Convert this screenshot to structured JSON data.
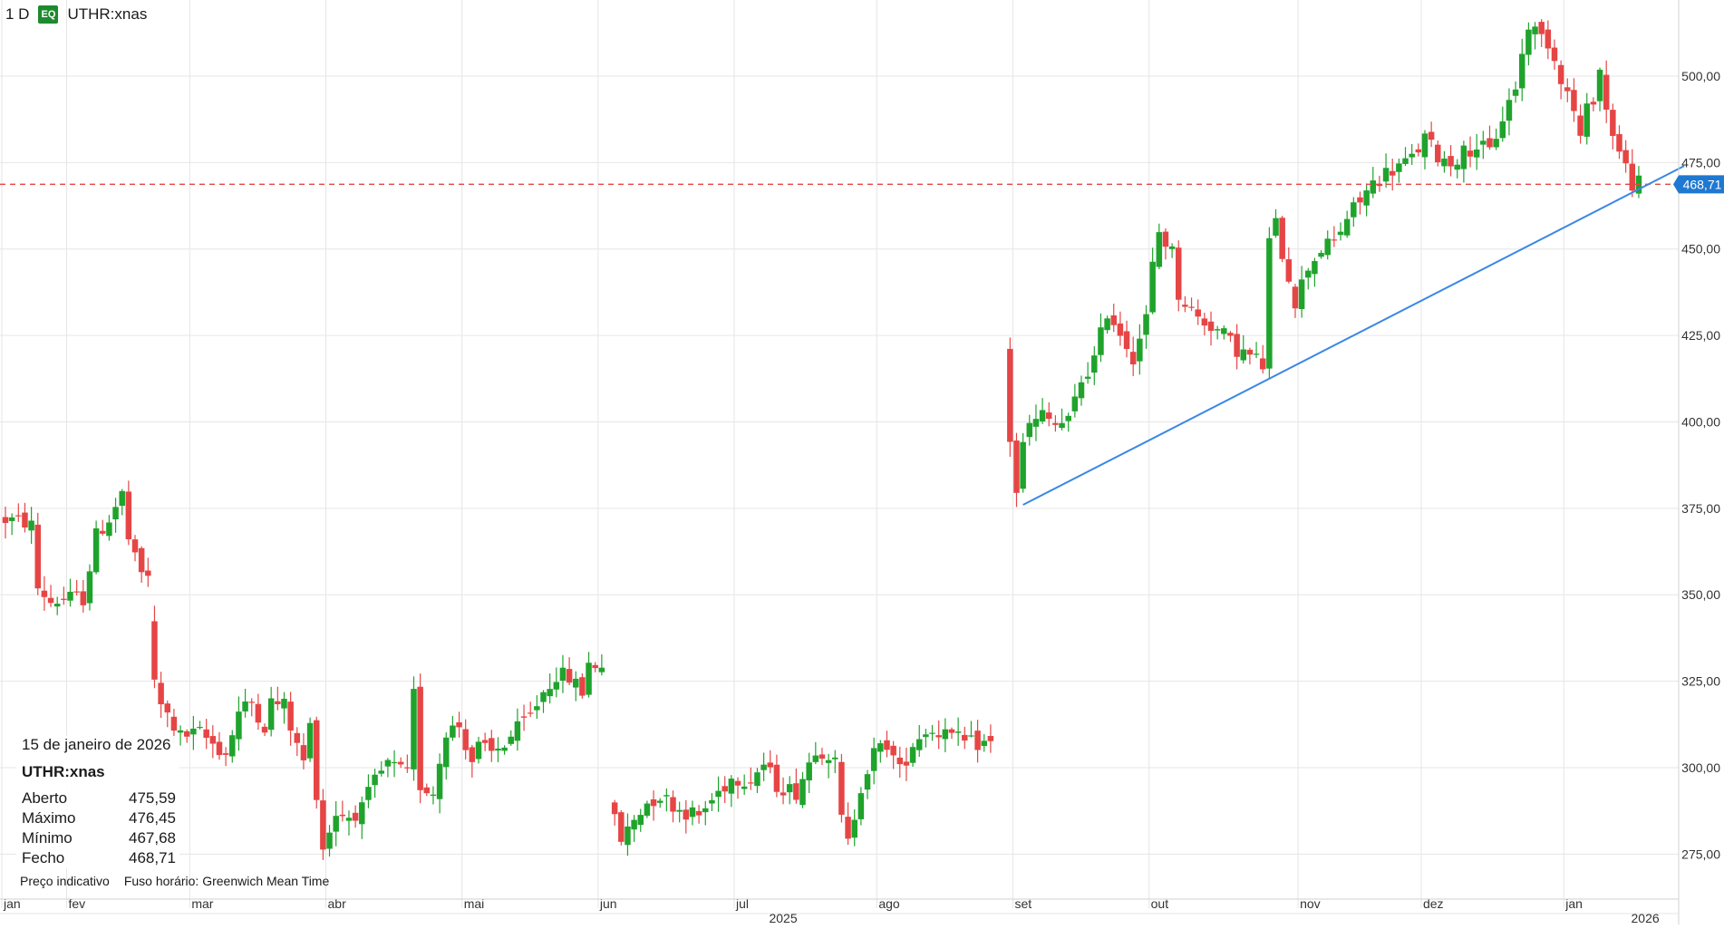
{
  "header": {
    "interval": "1 D",
    "badge": "EQ",
    "symbol": "UTHR:xnas"
  },
  "info": {
    "date": "15 de janeiro de 2026",
    "symbol": "UTHR:xnas",
    "rows": [
      {
        "label": "Aberto",
        "value": "475,59"
      },
      {
        "label": "Máximo",
        "value": "476,45"
      },
      {
        "label": "Mínimo",
        "value": "467,68"
      },
      {
        "label": "Fecho",
        "value": "468,71"
      }
    ],
    "note_price": "Preço indicativo",
    "note_tz": "Fuso horário: Greenwich Mean Time"
  },
  "colors": {
    "up": "#1fa32c",
    "down": "#e64545",
    "trendline": "#3a87e6",
    "last_price_line": "#e64545",
    "last_price_badge": "#1f78d1",
    "grid": "#e6e6e6"
  },
  "chart_data": {
    "type": "candlestick",
    "y_axis": {
      "ticks": [
        275,
        300,
        325,
        350,
        375,
        400,
        425,
        450,
        475,
        500
      ],
      "tick_labels": [
        "275,00",
        "300,00",
        "325,00",
        "350,00",
        "375,00",
        "400,00",
        "425,00",
        "450,00",
        "475,00",
        "500,00"
      ],
      "range": [
        262,
        522
      ],
      "position": "right"
    },
    "x_axis": {
      "months": [
        {
          "label": "jan",
          "day": 0
        },
        {
          "label": "fev",
          "day": 10
        },
        {
          "label": "mar",
          "day": 29
        },
        {
          "label": "abr",
          "day": 50
        },
        {
          "label": "mai",
          "day": 71
        },
        {
          "label": "jun",
          "day": 92
        },
        {
          "label": "jul",
          "day": 113
        },
        {
          "label": "ago",
          "day": 135
        },
        {
          "label": "set",
          "day": 156
        },
        {
          "label": "out",
          "day": 177
        },
        {
          "label": "nov",
          "day": 200
        },
        {
          "label": "dez",
          "day": 219
        },
        {
          "label": "jan",
          "day": 241
        }
      ],
      "years": [
        {
          "label": "2025",
          "day": 120
        },
        {
          "label": "2026",
          "day": 253
        }
      ],
      "range": [
        0,
        259
      ]
    },
    "last_price": {
      "value": 468.71,
      "label": "468,71"
    },
    "trendline": {
      "from": {
        "day": 157,
        "price": 376
      },
      "to": {
        "day": 259,
        "price": 474
      }
    },
    "segments": [
      {
        "start": 0,
        "n": 23,
        "points": [
          [
            0,
            372
          ],
          [
            4,
            371
          ],
          [
            5,
            370
          ],
          [
            6,
            352
          ],
          [
            8,
            348
          ],
          [
            11,
            349
          ],
          [
            13,
            349
          ],
          [
            15,
            367
          ],
          [
            17,
            372
          ],
          [
            19,
            379
          ],
          [
            20,
            366
          ],
          [
            21,
            360
          ],
          [
            22,
            356
          ]
        ]
      },
      {
        "start": 23,
        "n": 70,
        "points": [
          [
            0,
            343
          ],
          [
            1,
            324
          ],
          [
            2,
            318
          ],
          [
            5,
            309
          ],
          [
            8,
            310
          ],
          [
            12,
            304
          ],
          [
            14,
            316
          ],
          [
            16,
            319
          ],
          [
            18,
            312
          ],
          [
            19,
            319
          ],
          [
            21,
            318
          ],
          [
            23,
            306
          ],
          [
            24,
            302
          ],
          [
            25,
            312
          ],
          [
            26,
            293
          ],
          [
            27,
            277
          ],
          [
            29,
            287
          ],
          [
            31,
            286
          ],
          [
            33,
            288
          ],
          [
            35,
            296
          ],
          [
            37,
            301
          ],
          [
            40,
            298
          ],
          [
            41,
            321
          ],
          [
            42,
            295
          ],
          [
            44,
            293
          ],
          [
            46,
            311
          ],
          [
            48,
            312
          ],
          [
            50,
            302
          ],
          [
            51,
            306
          ],
          [
            53,
            304
          ],
          [
            55,
            307
          ],
          [
            57,
            311
          ],
          [
            59,
            315
          ],
          [
            61,
            322
          ],
          [
            63,
            327
          ],
          [
            65,
            326
          ],
          [
            67,
            322
          ],
          [
            68,
            330
          ]
        ]
      },
      {
        "start": 94,
        "n": 59,
        "points": [
          [
            0,
            290
          ],
          [
            2,
            279
          ],
          [
            4,
            285
          ],
          [
            6,
            290
          ],
          [
            8,
            292
          ],
          [
            11,
            288
          ],
          [
            14,
            286
          ],
          [
            17,
            293
          ],
          [
            19,
            297
          ],
          [
            22,
            297
          ],
          [
            24,
            301
          ],
          [
            26,
            295
          ],
          [
            29,
            293
          ],
          [
            32,
            306
          ],
          [
            34,
            304
          ],
          [
            35,
            301
          ],
          [
            36,
            285
          ],
          [
            37,
            278
          ],
          [
            39,
            295
          ],
          [
            41,
            304
          ],
          [
            43,
            307
          ],
          [
            45,
            299
          ],
          [
            47,
            307
          ],
          [
            49,
            311
          ],
          [
            51,
            310
          ],
          [
            52,
            313
          ],
          [
            53,
            309
          ],
          [
            55,
            307
          ],
          [
            57,
            307
          ]
        ]
      },
      {
        "start": 155,
        "n": 98,
        "points": [
          [
            0,
            422
          ],
          [
            1,
            395
          ],
          [
            2,
            380
          ],
          [
            3,
            393
          ],
          [
            4,
            399
          ],
          [
            5,
            400
          ],
          [
            6,
            402
          ],
          [
            8,
            399
          ],
          [
            10,
            400
          ],
          [
            12,
            412
          ],
          [
            14,
            418
          ],
          [
            16,
            432
          ],
          [
            18,
            426
          ],
          [
            20,
            419
          ],
          [
            22,
            430
          ],
          [
            23,
            445
          ],
          [
            24,
            455
          ],
          [
            26,
            449
          ],
          [
            27,
            437
          ],
          [
            30,
            430
          ],
          [
            32,
            428
          ],
          [
            34,
            425
          ],
          [
            36,
            421
          ],
          [
            38,
            419
          ],
          [
            39,
            418
          ],
          [
            40,
            416
          ],
          [
            41,
            452
          ],
          [
            42,
            457
          ],
          [
            43,
            449
          ],
          [
            45,
            435
          ],
          [
            47,
            445
          ],
          [
            49,
            450
          ],
          [
            51,
            452
          ],
          [
            53,
            459
          ],
          [
            55,
            464
          ],
          [
            57,
            469
          ],
          [
            59,
            472
          ],
          [
            61,
            474
          ],
          [
            63,
            476
          ],
          [
            65,
            482
          ],
          [
            67,
            477
          ],
          [
            69,
            475
          ],
          [
            71,
            478
          ],
          [
            73,
            480
          ],
          [
            75,
            478
          ],
          [
            77,
            488
          ],
          [
            79,
            497
          ],
          [
            80,
            506
          ],
          [
            81,
            515
          ],
          [
            82,
            513
          ],
          [
            84,
            510
          ],
          [
            86,
            500
          ],
          [
            88,
            490
          ],
          [
            89,
            482
          ],
          [
            90,
            490
          ],
          [
            91,
            494
          ],
          [
            92,
            502
          ],
          [
            93,
            490
          ],
          [
            95,
            478
          ],
          [
            97,
            469
          ]
        ]
      }
    ]
  }
}
